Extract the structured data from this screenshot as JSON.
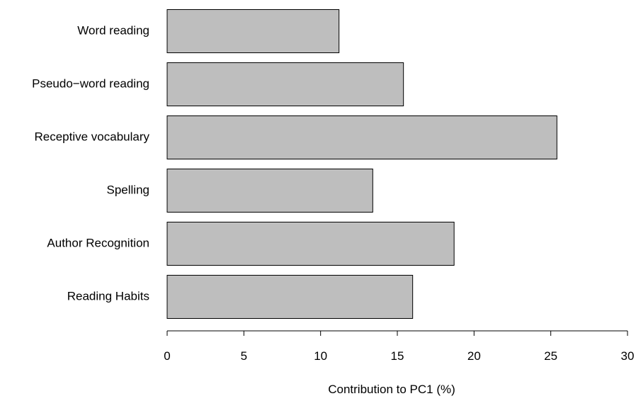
{
  "chart_data": {
    "type": "bar",
    "orientation": "horizontal",
    "categories": [
      "Word reading",
      "Pseudo−word reading",
      "Receptive vocabulary",
      "Spelling",
      "Author Recognition",
      "Reading Habits"
    ],
    "values": [
      11.2,
      15.4,
      25.4,
      13.4,
      18.7,
      16.0
    ],
    "xlabel": "Contribution to PC1 (%)",
    "xlim": [
      0,
      30
    ],
    "xticks": [
      "0",
      "5",
      "10",
      "15",
      "20",
      "25",
      "30"
    ],
    "bar_color": "#bebebe",
    "border_color": "#000000",
    "grid": false
  }
}
